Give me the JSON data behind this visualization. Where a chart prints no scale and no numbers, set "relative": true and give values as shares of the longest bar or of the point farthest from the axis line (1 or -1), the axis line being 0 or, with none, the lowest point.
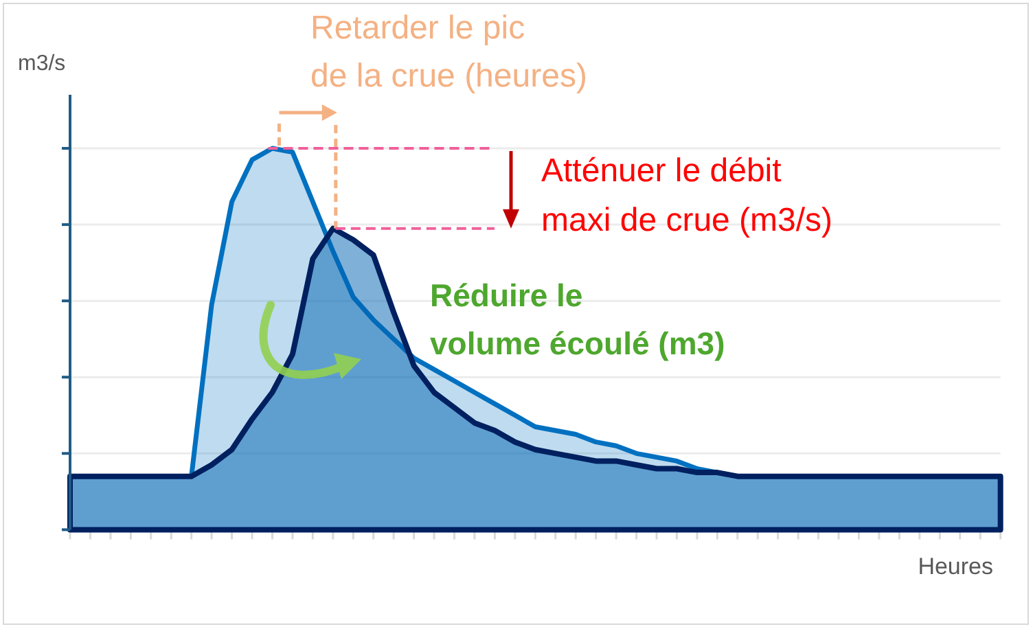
{
  "chart_data": {
    "type": "area",
    "xlabel": "Heures",
    "ylabel": "m3/s",
    "annotations": [
      "Retarder le pic de la crue (heures)",
      "Atténuer le débit maxi de crue (m3/s)",
      "Réduire le volume écoulé (m3)"
    ],
    "categories": [
      null,
      null,
      null,
      null,
      null,
      null,
      null,
      null,
      null,
      null,
      null,
      null,
      null,
      null,
      null,
      null,
      null,
      null,
      null,
      null,
      null,
      null,
      null,
      null,
      null,
      null,
      null,
      null,
      null,
      null,
      null,
      null,
      null,
      null,
      null,
      null,
      null,
      null,
      null,
      null,
      null,
      null,
      null,
      null,
      null,
      null,
      null
    ],
    "series": [
      {
        "color": "#0070c0",
        "values": [
          0.14,
          0.14,
          0.14,
          0.14,
          0.14,
          0.14,
          0.14,
          0.59,
          0.86,
          0.97,
          1,
          0.99,
          0.86,
          0.73,
          0.61,
          0.55,
          0.5,
          0.45,
          0.42,
          0.39,
          0.36,
          0.33,
          0.3,
          0.27,
          0.26,
          0.25,
          0.23,
          0.22,
          0.2,
          0.19,
          0.18,
          0.16,
          0.15,
          0.14,
          0.14,
          0.14,
          0.14,
          0.14,
          0.14,
          0.14,
          0.14,
          0.14,
          0.14,
          0.14,
          0.14,
          0.14,
          0.14
        ]
      },
      {
        "color": "#002060",
        "values": [
          0.14,
          0.14,
          0.14,
          0.14,
          0.14,
          0.14,
          0.14,
          0.17,
          0.21,
          0.29,
          0.36,
          0.46,
          0.71,
          0.79,
          0.76,
          0.72,
          0.57,
          0.43,
          0.36,
          0.32,
          0.28,
          0.26,
          0.23,
          0.21,
          0.2,
          0.19,
          0.18,
          0.18,
          0.17,
          0.16,
          0.16,
          0.15,
          0.15,
          0.14,
          0.14,
          0.14,
          0.14,
          0.14,
          0.14,
          0.14,
          0.14,
          0.14,
          0.14,
          0.14,
          0.14,
          0.14,
          0.14
        ]
      }
    ],
    "relative": true,
    "grid": "y"
  }
}
